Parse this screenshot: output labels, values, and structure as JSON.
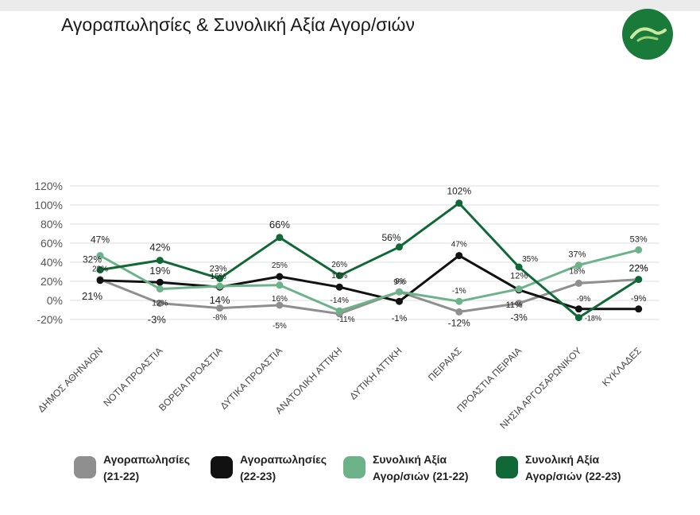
{
  "title": "Αγοραπωλησίες & Συνολική Αξία Αγορ/σιών",
  "colors": {
    "gray": "#8f8f8f",
    "black": "#111111",
    "lightgreen": "#6db38a",
    "darkgreen": "#116837",
    "logo": "#1a7a3a"
  },
  "chart_data": {
    "type": "line",
    "title": "Αγοραπωλησίες & Συνολική Αξία Αγορ/σιών",
    "categories": [
      "ΔΗΜΟΣ ΑΘΗΝΑΙΩΝ",
      "ΝΟΤΙΑ ΠΡΟΑΣΤΙΑ",
      "ΒΟΡΕΙΑ ΠΡΟΑΣΤΙΑ",
      "ΔΥΤΙΚΑ ΠΡΟΑΣΤΙΑ",
      "ΑΝΑΤΟΛΙΚΗ ΑΤΤΙΚΗ",
      "ΔΥΤΙΚΗ ΑΤΤΙΚΗ",
      "ΠΕΙΡΑΙΑΣ",
      "ΠΡΟΑΣΤΙΑ ΠΕΙΡΑΙΑ",
      "ΝΗΣΙΑ ΑΡΓΟΣΑΡΩΝΙΚΟΥ",
      "ΚΥΚΛΑΔΕΣ"
    ],
    "yticks": [
      "120%",
      "100%",
      "80%",
      "60%",
      "40%",
      "20%",
      "0%",
      "-20%"
    ],
    "ylim": [
      -20,
      120
    ],
    "legend_position": "bottom",
    "series": [
      {
        "name": "Αγοραπωλησίες (21-22)",
        "name_lines": [
          "Αγοραπωλησίες",
          "(21-22)"
        ],
        "color": "#8f8f8f",
        "values": [
          22,
          -3,
          -8,
          -5,
          -14,
          9,
          -12,
          -3,
          18,
          22
        ],
        "labels": [
          "22%",
          "-3%",
          "-8%",
          "-5%",
          "-14%",
          "9%",
          "-12%",
          "-3%",
          "18%",
          "22%"
        ]
      },
      {
        "name": "Αγοραπωλησίες (22-23)",
        "name_lines": [
          "Αγοραπωλησίες",
          "(22-23)"
        ],
        "color": "#111111",
        "values": [
          21,
          19,
          14,
          25,
          14,
          -1,
          47,
          11,
          -9,
          -9
        ],
        "labels": [
          "21%",
          "19%",
          "14%",
          "25%",
          "14%",
          "-1%",
          "47%",
          "11%",
          "-9%",
          "-9%"
        ]
      },
      {
        "name": "Συνολική Αξία Αγορ/σιών (21-22)",
        "name_lines": [
          "Συνολική Αξία",
          "Αγορ/σιών (21-22)"
        ],
        "color": "#6db38a",
        "values": [
          47,
          12,
          15,
          16,
          -11,
          9,
          -1,
          12,
          37,
          53
        ],
        "labels": [
          "47%",
          "12%",
          "15%",
          "16%",
          "-11%",
          "9%",
          "-1%",
          "12%",
          "37%",
          "53%"
        ]
      },
      {
        "name": "Συνολική Αξία Αγορ/σιών (22-23)",
        "name_lines": [
          "Συνολική Αξία",
          "Αγορ/σιών (22-23)"
        ],
        "color": "#116837",
        "values": [
          32,
          42,
          23,
          66,
          26,
          56,
          102,
          35,
          -18,
          22
        ],
        "labels": [
          "32%",
          "42%",
          "23%",
          "66%",
          "26%",
          "56%",
          "102%",
          "35%",
          "-18%",
          "22%"
        ]
      }
    ]
  }
}
